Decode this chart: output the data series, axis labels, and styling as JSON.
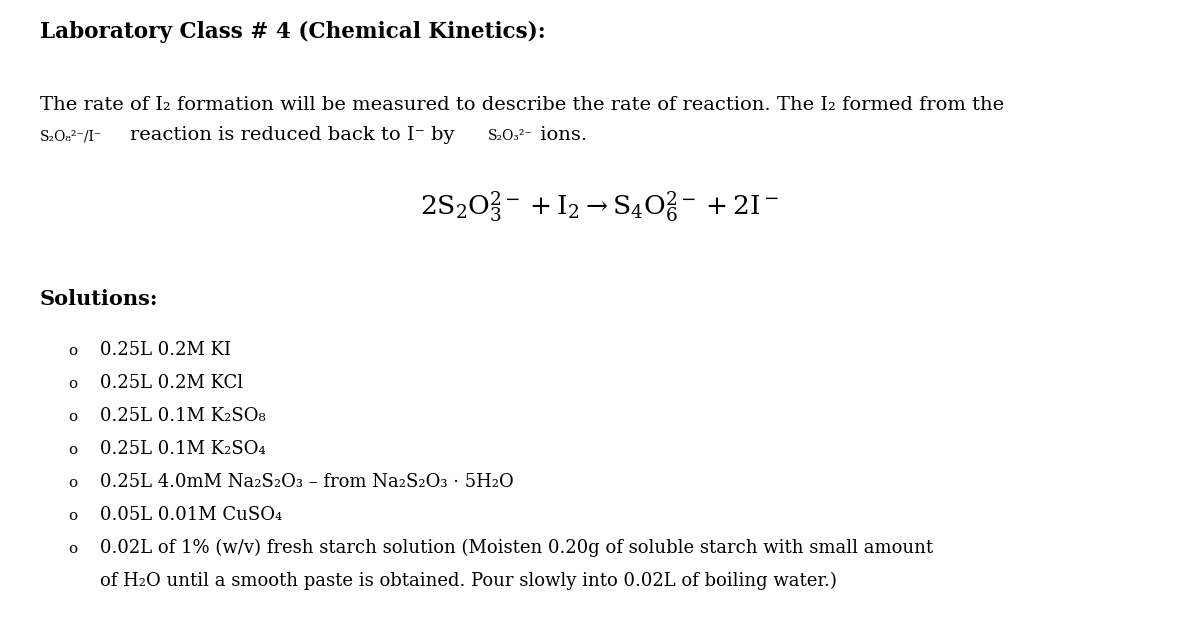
{
  "title": "Laboratory Class # 4 (Chemical Kinetics):",
  "background_color": "#ffffff",
  "text_color": "#000000",
  "figsize": [
    12.0,
    6.44
  ],
  "dpi": 100,
  "bullet_items": [
    "0.25L 0.2M KI",
    "0.25L 0.2M KCl",
    "0.25L 0.1M K₂SO₈",
    "0.25L 0.1M K₂SO₄",
    "0.25L 4.0mM Na₂S₂O₃ – from Na₂S₂O₃ · 5H₂O",
    "0.05L 0.01M CuSO₄",
    "0.02L of 1% (w/v) fresh starch solution (Moisten 0.20g of soluble starch with small amount",
    "of H₂O until a smooth paste is obtained. Pour slowly into 0.02L of boiling water.)"
  ],
  "solutions_header": "Solutions:",
  "para1_line1": "The rate of I₂ formation will be measured to describe the rate of reaction. The I₂ formed from the",
  "para1_line2_main": "reaction is reduced back to I⁻ by",
  "para1_line2_end": " ions.",
  "para1_sup1": "S₂O₈²⁻/I⁻",
  "para1_sup2": "S₂O₃²⁻"
}
